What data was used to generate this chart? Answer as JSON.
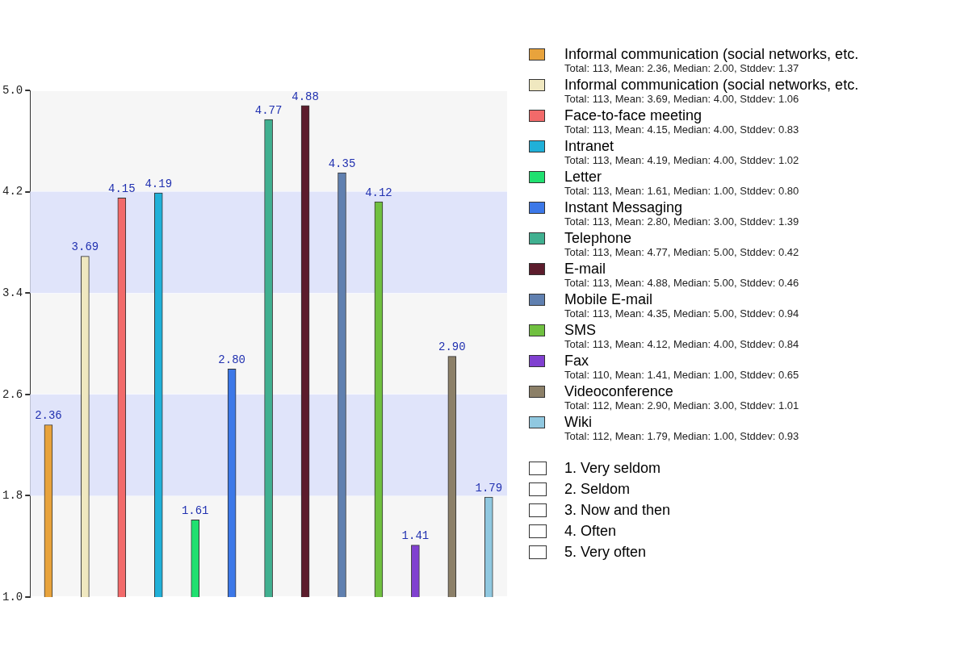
{
  "chart_data": {
    "type": "bar",
    "categories": [
      null,
      null,
      null,
      null,
      null,
      null,
      null,
      null,
      null,
      null,
      null,
      null,
      null
    ],
    "series": [
      {
        "name": "Informal communication (social networks, etc.",
        "color": "#e8a33c",
        "values": [
          2.36,
          null,
          null,
          null,
          null,
          null,
          null,
          null,
          null,
          null,
          null,
          null,
          null
        ],
        "value_labels": [
          "2.36",
          null,
          null,
          null,
          null,
          null,
          null,
          null,
          null,
          null,
          null,
          null,
          null
        ]
      },
      {
        "name": "Informal communication (social networks, etc.",
        "color": "#f0e8c0",
        "values": [
          null,
          3.69,
          null,
          null,
          null,
          null,
          null,
          null,
          null,
          null,
          null,
          null,
          null
        ],
        "value_labels": [
          null,
          "3.69",
          null,
          null,
          null,
          null,
          null,
          null,
          null,
          null,
          null,
          null,
          null
        ]
      },
      {
        "name": "Face-to-face meeting",
        "color": "#f26a6a",
        "values": [
          null,
          null,
          4.15,
          null,
          null,
          null,
          null,
          null,
          null,
          null,
          null,
          null,
          null
        ],
        "value_labels": [
          null,
          null,
          "4.15",
          null,
          null,
          null,
          null,
          null,
          null,
          null,
          null,
          null,
          null
        ]
      },
      {
        "name": "Intranet",
        "color": "#20b0d8",
        "values": [
          null,
          null,
          null,
          4.19,
          null,
          null,
          null,
          null,
          null,
          null,
          null,
          null,
          null
        ],
        "value_labels": [
          null,
          null,
          null,
          "4.19",
          null,
          null,
          null,
          null,
          null,
          null,
          null,
          null,
          null
        ]
      },
      {
        "name": "Letter",
        "color": "#20e070",
        "values": [
          null,
          null,
          null,
          null,
          1.61,
          null,
          null,
          null,
          null,
          null,
          null,
          null,
          null
        ],
        "value_labels": [
          null,
          null,
          null,
          null,
          "1.61",
          null,
          null,
          null,
          null,
          null,
          null,
          null,
          null
        ]
      },
      {
        "name": "Instant Messaging",
        "color": "#3c78e8",
        "values": [
          null,
          null,
          null,
          null,
          null,
          2.8,
          null,
          null,
          null,
          null,
          null,
          null,
          null
        ],
        "value_labels": [
          null,
          null,
          null,
          null,
          null,
          "2.80",
          null,
          null,
          null,
          null,
          null,
          null,
          null
        ]
      },
      {
        "name": "Telephone",
        "color": "#40b090",
        "values": [
          null,
          null,
          null,
          null,
          null,
          null,
          4.77,
          null,
          null,
          null,
          null,
          null,
          null
        ],
        "value_labels": [
          null,
          null,
          null,
          null,
          null,
          null,
          "4.77",
          null,
          null,
          null,
          null,
          null,
          null
        ]
      },
      {
        "name": "E-mail",
        "color": "#5c1c2c",
        "values": [
          null,
          null,
          null,
          null,
          null,
          null,
          null,
          4.88,
          null,
          null,
          null,
          null,
          null
        ],
        "value_labels": [
          null,
          null,
          null,
          null,
          null,
          null,
          null,
          "4.88",
          null,
          null,
          null,
          null,
          null
        ]
      },
      {
        "name": "Mobile E-mail",
        "color": "#6080b0",
        "values": [
          null,
          null,
          null,
          null,
          null,
          null,
          null,
          null,
          4.35,
          null,
          null,
          null,
          null
        ],
        "value_labels": [
          null,
          null,
          null,
          null,
          null,
          null,
          null,
          null,
          "4.35",
          null,
          null,
          null,
          null
        ]
      },
      {
        "name": "SMS",
        "color": "#70c040",
        "values": [
          null,
          null,
          null,
          null,
          null,
          null,
          null,
          null,
          null,
          4.12,
          null,
          null,
          null
        ],
        "value_labels": [
          null,
          null,
          null,
          null,
          null,
          null,
          null,
          null,
          null,
          "4.12",
          null,
          null,
          null
        ]
      },
      {
        "name": "Fax",
        "color": "#8040d0",
        "values": [
          null,
          null,
          null,
          null,
          null,
          null,
          null,
          null,
          null,
          null,
          1.41,
          null,
          null
        ],
        "value_labels": [
          null,
          null,
          null,
          null,
          null,
          null,
          null,
          null,
          null,
          null,
          "1.41",
          null,
          null
        ]
      },
      {
        "name": "Videoconference",
        "color": "#8c8068",
        "values": [
          null,
          null,
          null,
          null,
          null,
          null,
          null,
          null,
          null,
          null,
          null,
          2.9,
          null
        ],
        "value_labels": [
          null,
          null,
          null,
          null,
          null,
          null,
          null,
          null,
          null,
          null,
          null,
          "2.90",
          null
        ]
      },
      {
        "name": "Wiki",
        "color": "#90c8e0",
        "values": [
          null,
          null,
          null,
          null,
          null,
          null,
          null,
          null,
          null,
          null,
          null,
          null,
          1.79
        ],
        "value_labels": [
          null,
          null,
          null,
          null,
          null,
          null,
          null,
          null,
          null,
          null,
          null,
          null,
          "1.79"
        ]
      }
    ],
    "ylim": [
      1,
      5
    ],
    "yticks": [
      {
        "value": 1,
        "label": "1.0"
      },
      {
        "value": 1.8,
        "label": "1.8"
      },
      {
        "value": 2.6,
        "label": "2.6"
      },
      {
        "value": 3.4,
        "label": "3.4"
      },
      {
        "value": 4.2,
        "label": "4.2"
      },
      {
        "value": 5,
        "label": "5.0"
      }
    ],
    "bands": [
      {
        "axis": "y",
        "from": 1.8,
        "to": 2.6,
        "color": "#e0e4fa"
      },
      {
        "axis": "y",
        "from": 3.4,
        "to": 4.2,
        "color": "#e0e4fa"
      }
    ],
    "grid": "y",
    "legend": "right",
    "tick_labels": "y",
    "annotations": [
      "Total: 113, Mean: 2.36, Median: 2.00, Stddev: 1.37",
      "Total: 113, Mean: 3.69, Median: 4.00, Stddev: 1.06",
      "Total: 113, Mean: 4.15, Median: 4.00, Stddev: 0.83",
      "Total: 113, Mean: 4.19, Median: 4.00, Stddev: 1.02",
      "Total: 113, Mean: 1.61, Median: 1.00, Stddev: 0.80",
      "Total: 113, Mean: 2.80, Median: 3.00, Stddev: 1.39",
      "Total: 113, Mean: 4.77, Median: 5.00, Stddev: 0.42",
      "Total: 113, Mean: 4.88, Median: 5.00, Stddev: 0.46",
      "Total: 113, Mean: 4.35, Median: 5.00, Stddev: 0.94",
      "Total: 113, Mean: 4.12, Median: 4.00, Stddev: 0.84",
      "Total: 110, Mean: 1.41, Median: 1.00, Stddev: 0.65",
      "Total: 112, Mean: 2.90, Median: 3.00, Stddev: 1.01",
      "Total: 112, Mean: 1.79, Median: 1.00, Stddev: 0.93",
      "1. Very seldom",
      "2. Seldom",
      "3. Now and then",
      "4. Often",
      "5. Very often"
    ]
  }
}
